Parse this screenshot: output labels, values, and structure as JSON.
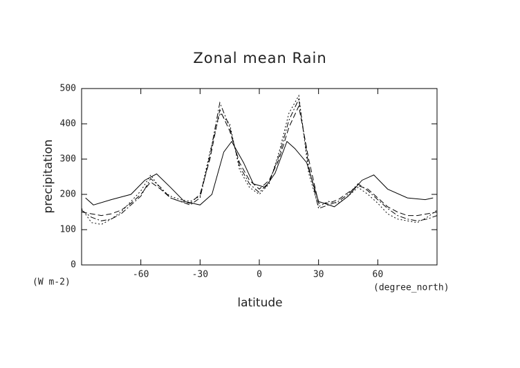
{
  "chart_data": {
    "type": "line",
    "title": "Zonal mean Rain",
    "y_label": "precipitation",
    "x_label": "latitude",
    "y_unit": "(W m-2)",
    "x_unit": "(degree_north)",
    "xlim": [
      -90,
      90
    ],
    "xticks": [
      -60,
      -30,
      0,
      30,
      60
    ],
    "ylim": [
      0,
      500
    ],
    "yticks": [
      0,
      100,
      200,
      300,
      400,
      500
    ],
    "x": [
      -90,
      -85,
      -80,
      -75,
      -70,
      -65,
      -60,
      -55,
      -50,
      -45,
      -40,
      -35,
      -30,
      -25,
      -20,
      -15,
      -10,
      -5,
      0,
      5,
      10,
      15,
      20,
      25,
      30,
      35,
      40,
      45,
      50,
      55,
      60,
      65,
      70,
      75,
      80,
      85,
      90
    ],
    "series": [
      {
        "color": "#000000",
        "dash": "none",
        "x": [
          -88,
          -84,
          -75,
          -65,
          -58,
          -52,
          -45,
          -38,
          -30,
          -24,
          -18,
          -14,
          -8,
          -3,
          3,
          8,
          14,
          18,
          24,
          30,
          38,
          45,
          52,
          58,
          65,
          75,
          84,
          88
        ],
        "values": [
          190,
          170,
          185,
          200,
          240,
          258,
          220,
          180,
          170,
          200,
          320,
          350,
          290,
          230,
          220,
          260,
          350,
          330,
          290,
          180,
          165,
          195,
          240,
          255,
          215,
          190,
          185,
          190
        ]
      },
      {
        "color": "#000000",
        "dash": "8,4",
        "values": [
          150,
          145,
          140,
          145,
          155,
          175,
          200,
          235,
          215,
          190,
          180,
          175,
          200,
          300,
          440,
          380,
          290,
          240,
          215,
          240,
          300,
          390,
          450,
          300,
          175,
          175,
          185,
          205,
          225,
          215,
          190,
          165,
          150,
          140,
          140,
          145,
          150
        ]
      },
      {
        "color": "#000000",
        "dash": "8,3,2,3",
        "values": [
          155,
          135,
          125,
          130,
          145,
          170,
          195,
          245,
          220,
          190,
          180,
          170,
          190,
          310,
          460,
          390,
          280,
          230,
          205,
          235,
          310,
          410,
          470,
          280,
          160,
          170,
          180,
          200,
          230,
          210,
          185,
          160,
          140,
          130,
          125,
          130,
          140
        ]
      },
      {
        "color": "#000000",
        "dash": "2,3",
        "values": [
          160,
          120,
          115,
          130,
          150,
          180,
          210,
          255,
          215,
          195,
          185,
          180,
          195,
          320,
          430,
          400,
          270,
          220,
          200,
          230,
          320,
          430,
          480,
          260,
          165,
          180,
          175,
          195,
          220,
          200,
          175,
          145,
          130,
          125,
          120,
          135,
          155
        ]
      }
    ]
  }
}
